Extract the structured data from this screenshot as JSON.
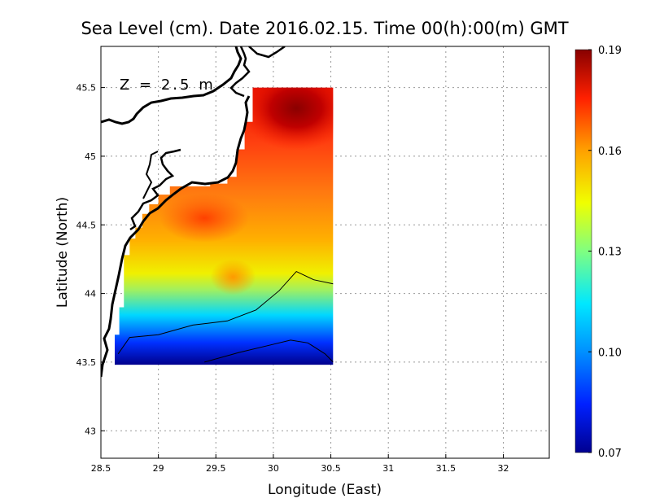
{
  "chart_data": {
    "type": "heatmap",
    "title": "Sea Level (cm). Date 2016.02.15. Time 00(h):00(m) GMT",
    "xlabel": "Longitude (East)",
    "ylabel": "Latitude (North)",
    "annotation": "Z = 2.5 m",
    "xlim": [
      28.5,
      32.4
    ],
    "ylim": [
      42.8,
      45.8
    ],
    "xticks": [
      28.5,
      29,
      29.5,
      30,
      30.5,
      31,
      31.5,
      32
    ],
    "yticks": [
      43,
      43.5,
      44,
      44.5,
      45,
      45.5
    ],
    "xtick_labels": [
      "28.5",
      "29",
      "29.5",
      "30",
      "30.5",
      "31",
      "31.5",
      "32"
    ],
    "ytick_labels": [
      "43",
      "43.5",
      "44",
      "44.5",
      "45",
      "45.5"
    ],
    "grid": true,
    "field": {
      "lon_range": [
        28.62,
        30.52
      ],
      "lat_range": [
        43.48,
        45.5
      ],
      "contours": [
        0.1,
        0.13
      ]
    },
    "colorbar": {
      "min": 0.07,
      "max": 0.19,
      "ticks": [
        0.07,
        0.1,
        0.13,
        0.16,
        0.19
      ],
      "tick_labels": [
        "0.07",
        "0.10",
        "0.13",
        "0.16",
        "0.19"
      ]
    },
    "colors": {
      "scale": [
        "#0000a0",
        "#0030ff",
        "#00c8ff",
        "#50e8a0",
        "#e8f000",
        "#ffa000",
        "#ff2000",
        "#900000"
      ]
    }
  }
}
